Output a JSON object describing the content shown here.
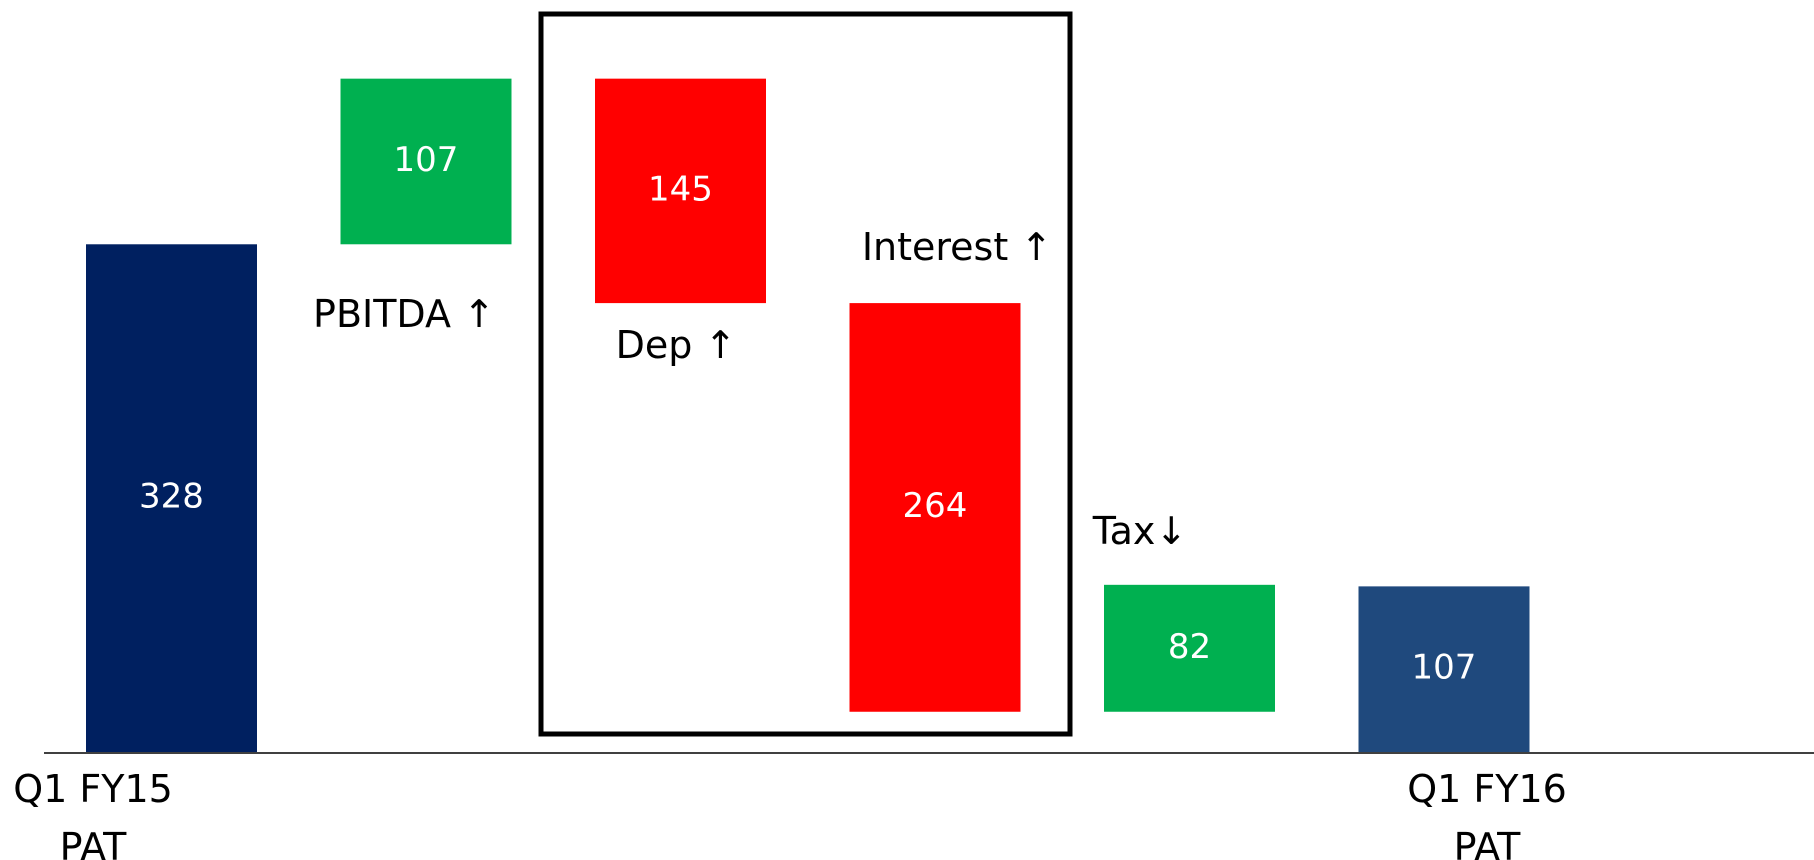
{
  "chart_data": {
    "type": "waterfall",
    "categories": [
      "Q1 FY15 PAT",
      "PBITDA ↑",
      "Dep ↑",
      "Interest ↑",
      "Tax↓",
      "Q1 FY16 PAT"
    ],
    "values": [
      328,
      107,
      -145,
      -264,
      82,
      107
    ],
    "value_labels": [
      "328",
      "107",
      "145",
      "264",
      "82",
      "107"
    ],
    "measures": [
      "total",
      "relative",
      "relative",
      "relative",
      "relative",
      "total"
    ],
    "colors": [
      "#002060",
      "#00b050",
      "#ff0000",
      "#ff0000",
      "#00b050",
      "#1f497d"
    ],
    "ylim": [
      0,
      480
    ]
  }
}
